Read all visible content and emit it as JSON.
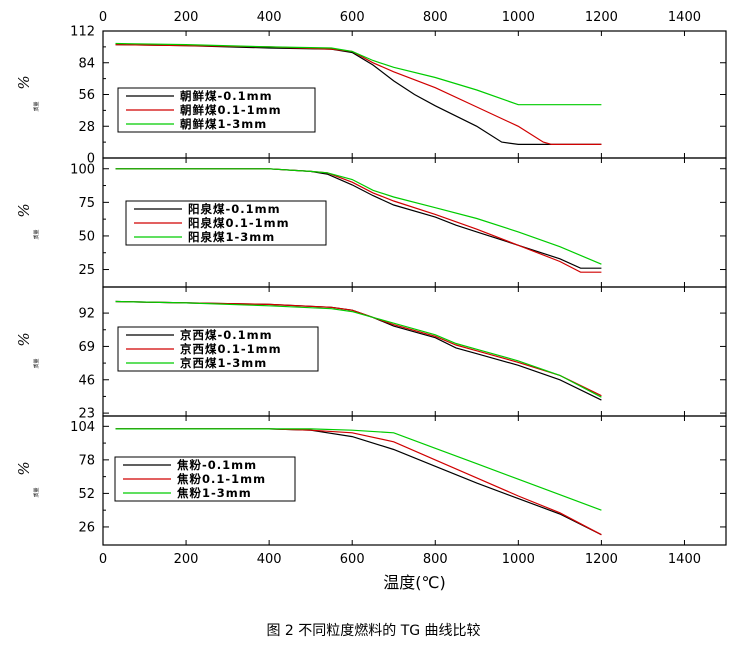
{
  "caption": "图 2   不同粒度燃料的 TG 曲线比较",
  "chart_data": {
    "type": "line",
    "xlabel": "温度(℃)",
    "xlim": [
      0,
      1500
    ],
    "xticks": [
      0,
      200,
      400,
      600,
      800,
      1000,
      1200,
      1400
    ],
    "colors": {
      "fine": "#000000",
      "medium": "#d00000",
      "coarse": "#00cc00"
    },
    "panels": [
      {
        "ylabel": "%",
        "ylabel_sub": "质量",
        "ylim": [
          0,
          112
        ],
        "yticks": [
          0,
          28,
          56,
          84,
          112
        ],
        "series": [
          {
            "name": "朝鲜煤-0.1mm",
            "color": "#000000",
            "points": [
              [
                30,
                100
              ],
              [
                200,
                99
              ],
              [
                400,
                97
              ],
              [
                550,
                96
              ],
              [
                600,
                93
              ],
              [
                650,
                82
              ],
              [
                700,
                68
              ],
              [
                750,
                56
              ],
              [
                800,
                46
              ],
              [
                900,
                28
              ],
              [
                960,
                14
              ],
              [
                1000,
                12
              ],
              [
                1200,
                12
              ]
            ]
          },
          {
            "name": "朝鲜煤0.1-1mm",
            "color": "#d00000",
            "points": [
              [
                30,
                100
              ],
              [
                200,
                99
              ],
              [
                400,
                98
              ],
              [
                550,
                96
              ],
              [
                600,
                94
              ],
              [
                650,
                84
              ],
              [
                700,
                76
              ],
              [
                800,
                62
              ],
              [
                900,
                45
              ],
              [
                1000,
                28
              ],
              [
                1060,
                14
              ],
              [
                1080,
                12
              ],
              [
                1200,
                12
              ]
            ]
          },
          {
            "name": "朝鲜煤1-3mm",
            "color": "#00cc00",
            "points": [
              [
                30,
                101
              ],
              [
                200,
                100
              ],
              [
                400,
                98
              ],
              [
                550,
                97
              ],
              [
                600,
                94
              ],
              [
                650,
                86
              ],
              [
                700,
                80
              ],
              [
                800,
                71
              ],
              [
                900,
                60
              ],
              [
                1000,
                47
              ],
              [
                1200,
                47
              ]
            ]
          }
        ]
      },
      {
        "ylabel": "%",
        "ylabel_sub": "质量",
        "ylim": [
          12,
          108
        ],
        "yticks": [
          25,
          50,
          75,
          100
        ],
        "series": [
          {
            "name": "阳泉煤-0.1mm",
            "color": "#000000",
            "points": [
              [
                30,
                100
              ],
              [
                200,
                100
              ],
              [
                400,
                100
              ],
              [
                500,
                98
              ],
              [
                540,
                96
              ],
              [
                600,
                88
              ],
              [
                650,
                80
              ],
              [
                700,
                73
              ],
              [
                800,
                64
              ],
              [
                850,
                58
              ],
              [
                900,
                53
              ],
              [
                1000,
                43
              ],
              [
                1100,
                33
              ],
              [
                1150,
                26
              ],
              [
                1200,
                26
              ]
            ]
          },
          {
            "name": "阳泉煤0.1-1mm",
            "color": "#d00000",
            "points": [
              [
                30,
                100
              ],
              [
                200,
                100
              ],
              [
                400,
                100
              ],
              [
                500,
                98
              ],
              [
                540,
                97
              ],
              [
                600,
                90
              ],
              [
                650,
                82
              ],
              [
                700,
                76
              ],
              [
                800,
                66
              ],
              [
                900,
                55
              ],
              [
                1000,
                43
              ],
              [
                1100,
                31
              ],
              [
                1150,
                23
              ],
              [
                1200,
                23
              ]
            ]
          },
          {
            "name": "阳泉煤1-3mm",
            "color": "#00cc00",
            "points": [
              [
                30,
                100
              ],
              [
                200,
                100
              ],
              [
                400,
                100
              ],
              [
                500,
                98
              ],
              [
                540,
                97
              ],
              [
                600,
                92
              ],
              [
                650,
                84
              ],
              [
                700,
                79
              ],
              [
                800,
                71
              ],
              [
                900,
                63
              ],
              [
                1000,
                53
              ],
              [
                1100,
                42
              ],
              [
                1200,
                29
              ]
            ]
          }
        ]
      },
      {
        "ylabel": "%",
        "ylabel_sub": "质量",
        "ylim": [
          21,
          110
        ],
        "yticks": [
          23,
          46,
          69,
          92
        ],
        "series": [
          {
            "name": "京西煤-0.1mm",
            "color": "#000000",
            "points": [
              [
                30,
                100
              ],
              [
                200,
                99
              ],
              [
                400,
                98
              ],
              [
                550,
                96
              ],
              [
                600,
                94
              ],
              [
                650,
                89
              ],
              [
                700,
                83
              ],
              [
                800,
                75
              ],
              [
                850,
                68
              ],
              [
                900,
                64
              ],
              [
                1000,
                56
              ],
              [
                1100,
                46
              ],
              [
                1200,
                32
              ]
            ]
          },
          {
            "name": "京西煤0.1-1mm",
            "color": "#d00000",
            "points": [
              [
                30,
                100
              ],
              [
                200,
                99
              ],
              [
                400,
                98
              ],
              [
                550,
                96
              ],
              [
                600,
                94
              ],
              [
                650,
                89
              ],
              [
                700,
                84
              ],
              [
                800,
                76
              ],
              [
                850,
                70
              ],
              [
                900,
                66
              ],
              [
                1000,
                58
              ],
              [
                1100,
                49
              ],
              [
                1200,
                35
              ]
            ]
          },
          {
            "name": "京西煤1-3mm",
            "color": "#00cc00",
            "points": [
              [
                30,
                100
              ],
              [
                200,
                99
              ],
              [
                400,
                97
              ],
              [
                550,
                95
              ],
              [
                600,
                93
              ],
              [
                650,
                89
              ],
              [
                700,
                85
              ],
              [
                800,
                77
              ],
              [
                850,
                71
              ],
              [
                900,
                67
              ],
              [
                1000,
                59
              ],
              [
                1100,
                49
              ],
              [
                1200,
                34
              ]
            ]
          }
        ]
      },
      {
        "ylabel": "%",
        "ylabel_sub": "质量",
        "ylim": [
          12,
          112
        ],
        "yticks": [
          26,
          52,
          78,
          104
        ],
        "series": [
          {
            "name": "焦粉-0.1mm",
            "color": "#000000",
            "points": [
              [
                30,
                102
              ],
              [
                200,
                102
              ],
              [
                400,
                102
              ],
              [
                500,
                101
              ],
              [
                600,
                96
              ],
              [
                700,
                86
              ],
              [
                800,
                73
              ],
              [
                900,
                60
              ],
              [
                1000,
                48
              ],
              [
                1100,
                36
              ],
              [
                1200,
                20
              ]
            ]
          },
          {
            "name": "焦粉0.1-1mm",
            "color": "#d00000",
            "points": [
              [
                30,
                102
              ],
              [
                200,
                102
              ],
              [
                400,
                102
              ],
              [
                500,
                101
              ],
              [
                600,
                99
              ],
              [
                700,
                92
              ],
              [
                800,
                78
              ],
              [
                900,
                64
              ],
              [
                1000,
                50
              ],
              [
                1100,
                37
              ],
              [
                1200,
                20
              ]
            ]
          },
          {
            "name": "焦粉1-3mm",
            "color": "#00cc00",
            "points": [
              [
                30,
                102
              ],
              [
                200,
                102
              ],
              [
                400,
                102
              ],
              [
                500,
                102
              ],
              [
                600,
                101
              ],
              [
                700,
                99
              ],
              [
                800,
                87
              ],
              [
                900,
                75
              ],
              [
                1000,
                63
              ],
              [
                1100,
                51
              ],
              [
                1200,
                39
              ]
            ]
          }
        ]
      }
    ]
  }
}
